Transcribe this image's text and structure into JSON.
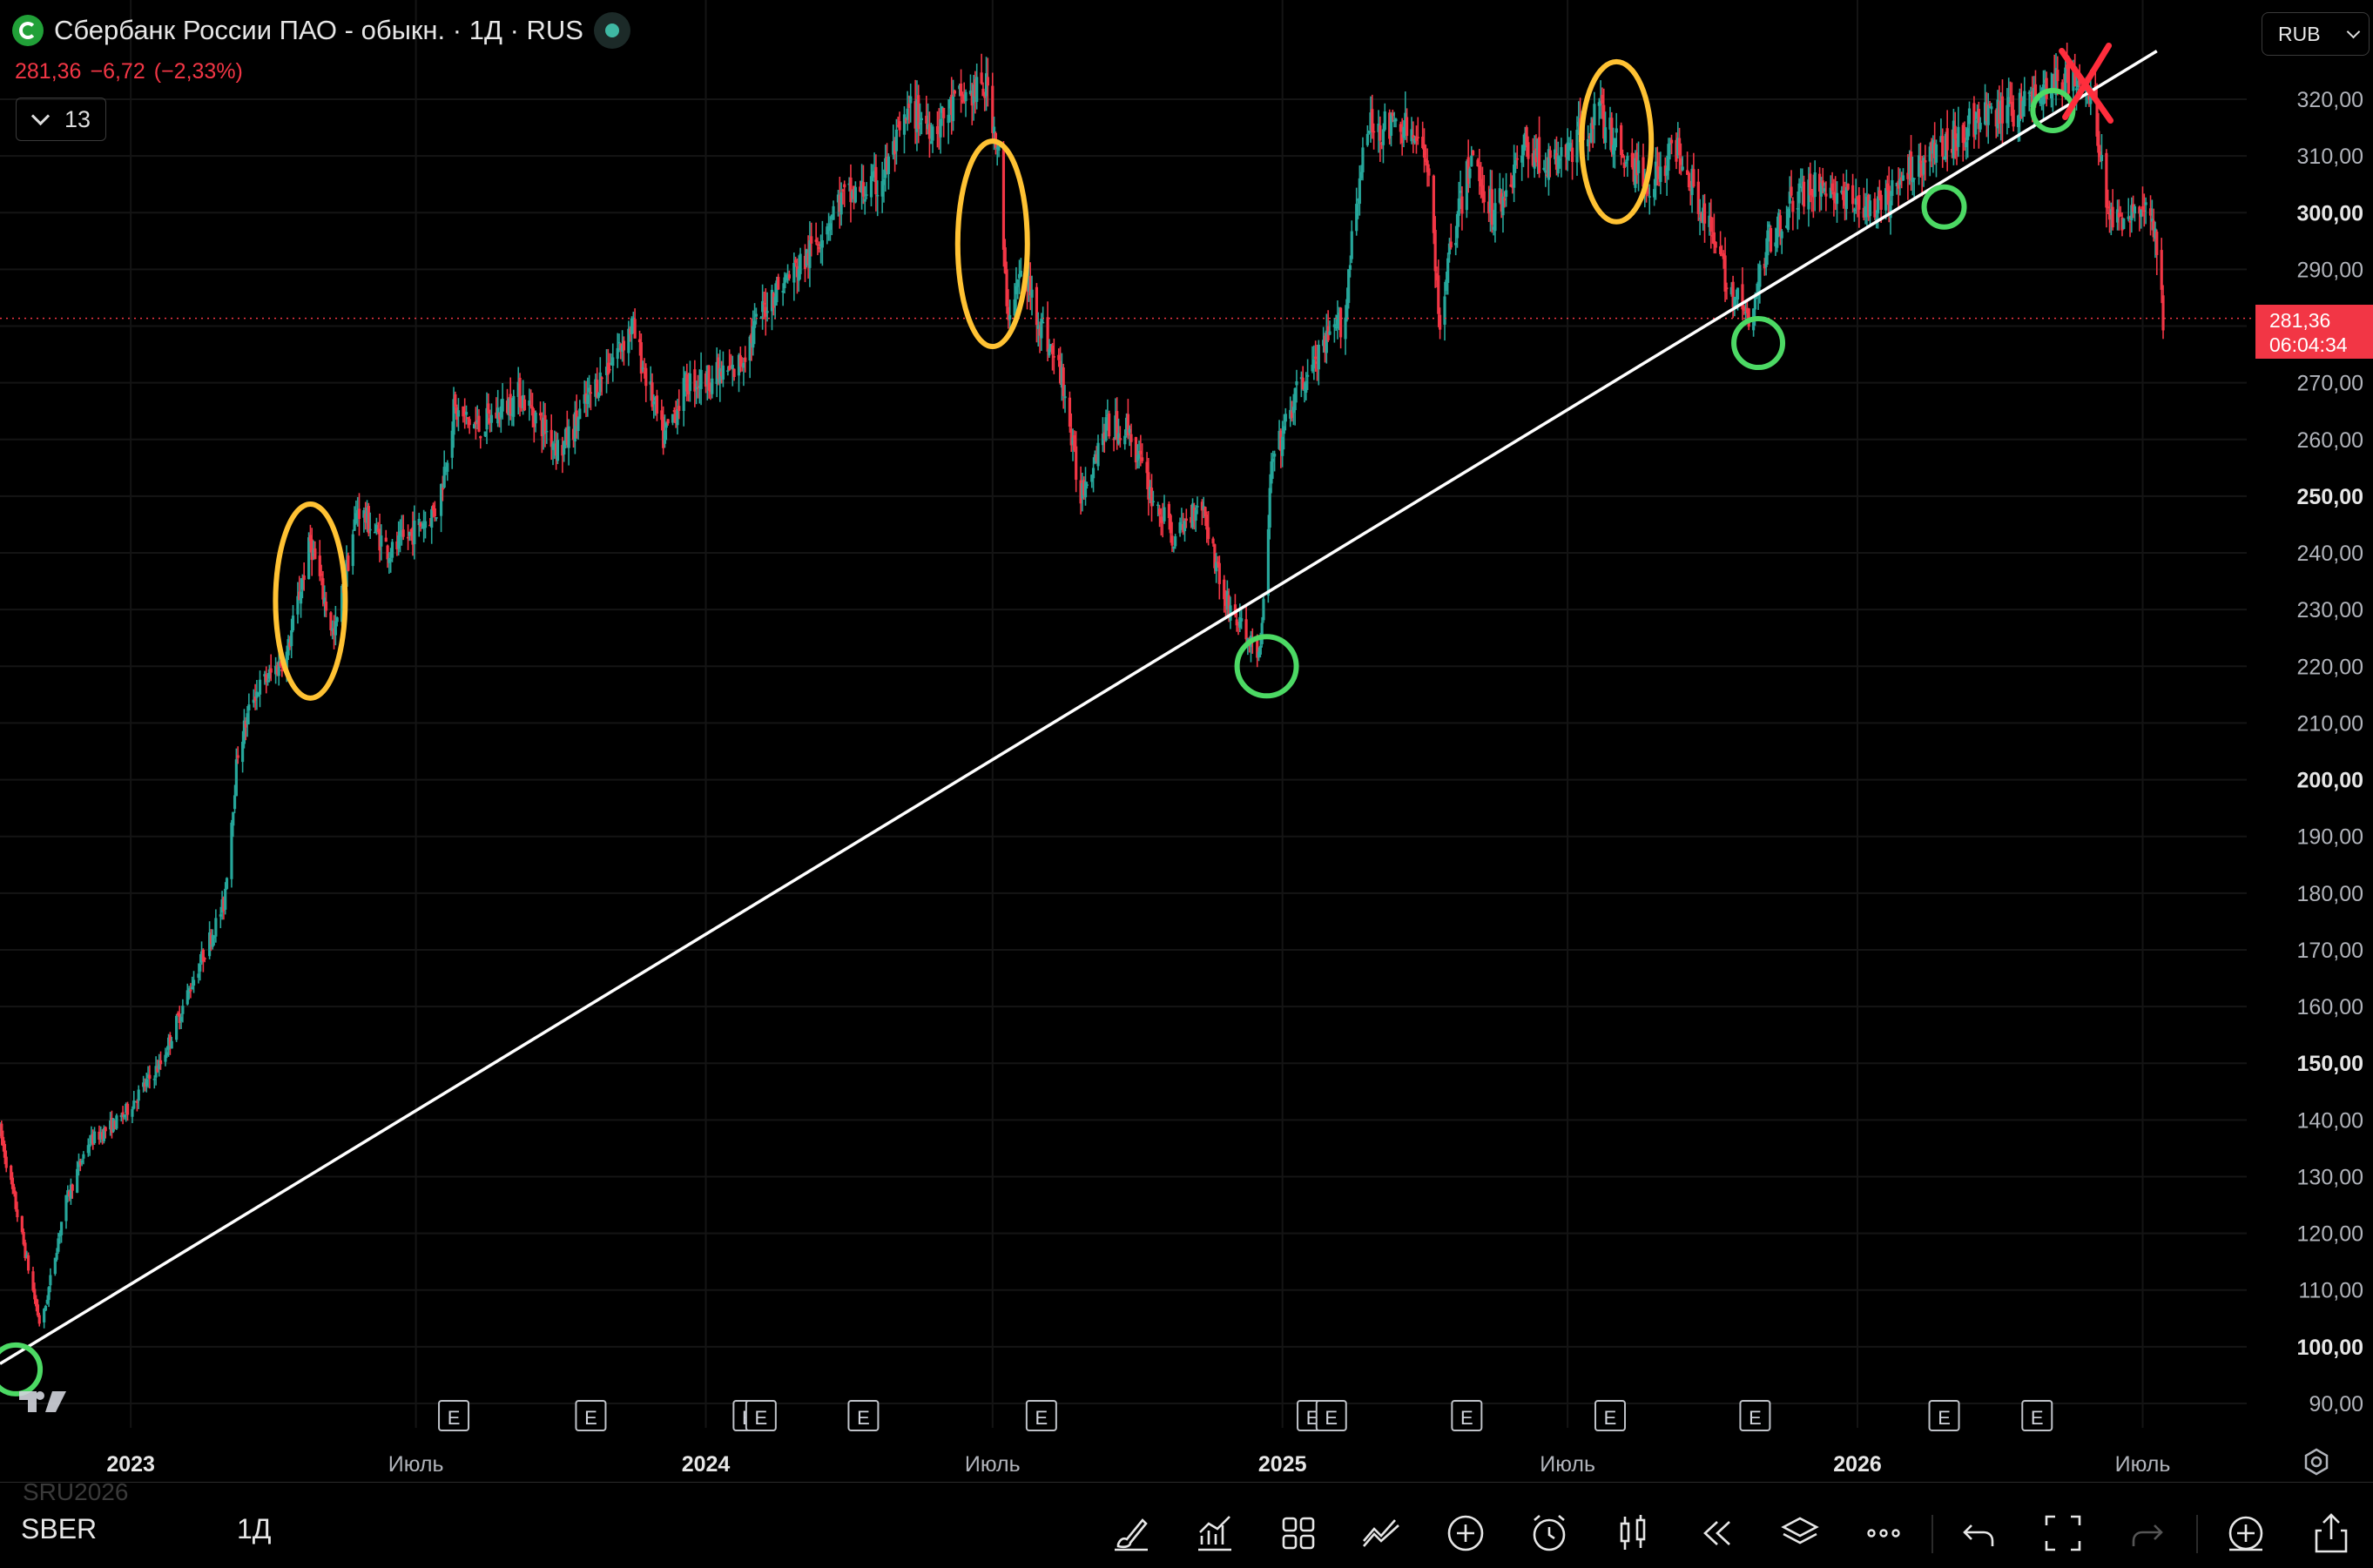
{
  "header": {
    "title": "Сбербанк России ПАО - обыкн. · 1Д · RUS",
    "last_price": "281,36",
    "change": "−6,72",
    "change_pct": "(−2,33%)",
    "indicator_count": "13",
    "currency": "RUB",
    "price_tag_value": "281,36",
    "price_tag_timer": "06:04:34"
  },
  "bottom": {
    "symbol": "SBER",
    "interval": "1Д",
    "faded_symbol": "SRU2026"
  },
  "toolbar": [
    {
      "name": "brush-icon"
    },
    {
      "name": "indicators-icon"
    },
    {
      "name": "layout-icon"
    },
    {
      "name": "strategy-icon"
    },
    {
      "name": "add-icon"
    },
    {
      "name": "alert-icon"
    },
    {
      "name": "bar-type-icon"
    },
    {
      "name": "replay-icon"
    },
    {
      "name": "layers-icon"
    },
    {
      "name": "more-icon"
    },
    {
      "name": "undo-icon"
    },
    {
      "name": "fullscreen-icon"
    },
    {
      "name": "redo-icon"
    },
    {
      "name": "add-chart-icon"
    },
    {
      "name": "share-icon"
    }
  ],
  "colors": {
    "up": "#26a69a",
    "down": "#f23645",
    "trendline": "#ffffff",
    "yellow_marker": "#ffc233",
    "green_marker": "#4cd964",
    "red_marker": "#ff2d3c"
  },
  "chart_data": {
    "type": "candlestick",
    "title": "Сбербанк России ПАО - обыкн. · 1Д · RUS",
    "ylim": [
      85,
      332
    ],
    "y_ticks": [
      "90,00",
      "100,00",
      "110,00",
      "120,00",
      "130,00",
      "140,00",
      "150,00",
      "160,00",
      "170,00",
      "180,00",
      "190,00",
      "200,00",
      "210,00",
      "220,00",
      "230,00",
      "240,00",
      "250,00",
      "260,00",
      "270,00",
      "280,00",
      "290,00",
      "300,00",
      "310,00",
      "320,00"
    ],
    "y_tick_values": [
      90,
      100,
      110,
      120,
      130,
      140,
      150,
      160,
      170,
      180,
      190,
      200,
      210,
      220,
      230,
      240,
      250,
      260,
      270,
      280,
      290,
      300,
      310,
      320
    ],
    "y_bold": [
      "100,00",
      "150,00",
      "200,00",
      "250,00",
      "300,00"
    ],
    "x_labels": [
      {
        "label": "2023",
        "date": "2023-01-01",
        "bold": true
      },
      {
        "label": "Июль",
        "date": "2023-07-01",
        "bold": false
      },
      {
        "label": "2024",
        "date": "2024-01-01",
        "bold": true
      },
      {
        "label": "Июль",
        "date": "2024-07-01",
        "bold": false
      },
      {
        "label": "2025",
        "date": "2025-01-01",
        "bold": true
      },
      {
        "label": "Июль",
        "date": "2025-07-01",
        "bold": false
      },
      {
        "label": "2026",
        "date": "2026-01-01",
        "bold": true
      },
      {
        "label": "Июль",
        "date": "2026-07-01",
        "bold": false
      }
    ],
    "xlim": [
      "2022-10-10",
      "2026-08-25"
    ],
    "price_anchors": [
      [
        "2022-10-10",
        138
      ],
      [
        "2022-10-25",
        118
      ],
      [
        "2022-11-05",
        103
      ],
      [
        "2022-11-20",
        125
      ],
      [
        "2022-12-05",
        136
      ],
      [
        "2022-12-25",
        140
      ],
      [
        "2023-01-20",
        150
      ],
      [
        "2023-02-10",
        165
      ],
      [
        "2023-03-01",
        178
      ],
      [
        "2023-03-10",
        205
      ],
      [
        "2023-03-20",
        215
      ],
      [
        "2023-04-10",
        222
      ],
      [
        "2023-04-25",
        242
      ],
      [
        "2023-05-10",
        225
      ],
      [
        "2023-05-25",
        248
      ],
      [
        "2023-06-15",
        240
      ],
      [
        "2023-07-15",
        248
      ],
      [
        "2023-07-25",
        265
      ],
      [
        "2023-08-10",
        262
      ],
      [
        "2023-09-05",
        268
      ],
      [
        "2023-10-01",
        258
      ],
      [
        "2023-10-20",
        268
      ],
      [
        "2023-11-15",
        280
      ],
      [
        "2023-12-05",
        260
      ],
      [
        "2023-12-20",
        270
      ],
      [
        "2024-01-20",
        272
      ],
      [
        "2024-02-10",
        285
      ],
      [
        "2024-03-05",
        292
      ],
      [
        "2024-03-25",
        302
      ],
      [
        "2024-04-20",
        305
      ],
      [
        "2024-05-10",
        318
      ],
      [
        "2024-05-25",
        315
      ],
      [
        "2024-06-10",
        320
      ],
      [
        "2024-06-28",
        322
      ],
      [
        "2024-07-05",
        310
      ],
      [
        "2024-07-10",
        282
      ],
      [
        "2024-07-20",
        290
      ],
      [
        "2024-08-01",
        280
      ],
      [
        "2024-08-15",
        270
      ],
      [
        "2024-08-25",
        250
      ],
      [
        "2024-09-10",
        262
      ],
      [
        "2024-09-25",
        262
      ],
      [
        "2024-10-10",
        250
      ],
      [
        "2024-10-25",
        242
      ],
      [
        "2024-11-10",
        250
      ],
      [
        "2024-11-25",
        232
      ],
      [
        "2024-12-10",
        225
      ],
      [
        "2024-12-18",
        222
      ],
      [
        "2024-12-25",
        255
      ],
      [
        "2025-01-10",
        268
      ],
      [
        "2025-01-25",
        275
      ],
      [
        "2025-02-10",
        282
      ],
      [
        "2025-02-15",
        300
      ],
      [
        "2025-02-25",
        315
      ],
      [
        "2025-03-20",
        315
      ],
      [
        "2025-04-05",
        308
      ],
      [
        "2025-04-10",
        280
      ],
      [
        "2025-04-15",
        290
      ],
      [
        "2025-05-01",
        310
      ],
      [
        "2025-05-15",
        300
      ],
      [
        "2025-06-05",
        312
      ],
      [
        "2025-06-20",
        308
      ],
      [
        "2025-07-05",
        312
      ],
      [
        "2025-07-20",
        318
      ],
      [
        "2025-08-01",
        312
      ],
      [
        "2025-08-20",
        305
      ],
      [
        "2025-09-10",
        312
      ],
      [
        "2025-09-25",
        300
      ],
      [
        "2025-10-10",
        288
      ],
      [
        "2025-10-25",
        280
      ],
      [
        "2025-11-05",
        295
      ],
      [
        "2025-11-20",
        302
      ],
      [
        "2025-12-10",
        305
      ],
      [
        "2025-12-25",
        302
      ],
      [
        "2026-01-15",
        300
      ],
      [
        "2026-02-05",
        308
      ],
      [
        "2026-02-25",
        312
      ],
      [
        "2026-03-15",
        316
      ],
      [
        "2026-04-10",
        318
      ],
      [
        "2026-05-01",
        322
      ],
      [
        "2026-05-20",
        324
      ],
      [
        "2026-06-01",
        318
      ],
      [
        "2026-06-10",
        298
      ],
      [
        "2026-06-20",
        300
      ],
      [
        "2026-07-01",
        302
      ],
      [
        "2026-07-10",
        295
      ],
      [
        "2026-07-14",
        281.36
      ]
    ],
    "earnings_markers": [
      "2023-07-25",
      "2023-10-20",
      "2024-01-28",
      "2024-02-05",
      "2024-04-10",
      "2024-08-01",
      "2025-01-20",
      "2025-02-01",
      "2025-04-28",
      "2025-07-28",
      "2025-10-28",
      "2026-02-25",
      "2026-04-25"
    ],
    "earnings_label": "E",
    "current_price": 281.36,
    "trendline": {
      "from": [
        "2022-10-10",
        97
      ],
      "to": [
        "2026-07-10",
        328.5
      ]
    },
    "annotations": {
      "yellow_ellipses": [
        {
          "date": "2023-04-25",
          "price_high": 248,
          "price_low": 215
        },
        {
          "date": "2024-07-01",
          "price_high": 312,
          "price_low": 277
        },
        {
          "date": "2025-08-01",
          "price_high": 326,
          "price_low": 299
        }
      ],
      "green_circles": [
        {
          "date": "2022-10-20",
          "price": 96
        },
        {
          "date": "2024-12-22",
          "price": 220
        },
        {
          "date": "2025-10-30",
          "price": 277
        },
        {
          "date": "2026-02-25",
          "price": 301
        },
        {
          "date": "2026-05-05",
          "price": 318
        }
      ],
      "red_cross": {
        "date": "2026-05-25",
        "price": 323
      }
    }
  }
}
